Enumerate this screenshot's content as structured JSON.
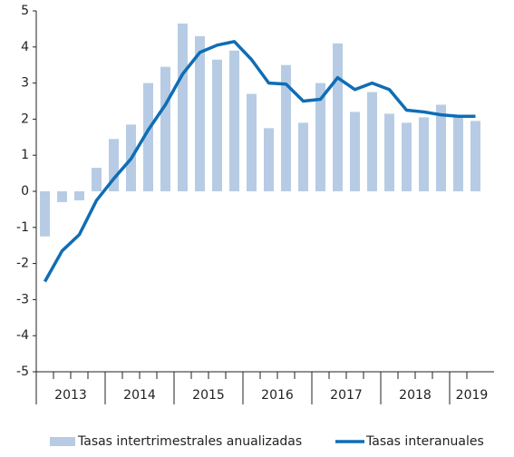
{
  "chart_data": {
    "type": "bar_line",
    "categories": [
      "2013",
      null,
      null,
      null,
      "2014",
      null,
      null,
      null,
      "2015",
      null,
      null,
      null,
      "2016",
      null,
      null,
      null,
      "2017",
      null,
      null,
      null,
      "2018",
      null,
      null,
      null,
      "2019",
      null
    ],
    "series": [
      {
        "name": "Tasas intertrimestrales anualizadas",
        "kind": "bar",
        "color": "#b7cce4",
        "values": [
          -1.25,
          -0.3,
          -0.25,
          0.65,
          1.45,
          1.85,
          3.0,
          3.45,
          4.65,
          4.3,
          3.65,
          3.9,
          2.7,
          1.75,
          3.5,
          1.9,
          3.0,
          4.1,
          2.2,
          2.75,
          2.15,
          1.9,
          2.05,
          2.4,
          2.1,
          1.95
        ]
      },
      {
        "name": "Tasas interanuales",
        "kind": "line",
        "color": "#0f6db5",
        "values": [
          -2.5,
          -1.65,
          -1.2,
          -0.25,
          0.35,
          0.9,
          1.7,
          2.4,
          3.25,
          3.85,
          4.05,
          4.15,
          3.65,
          3.0,
          2.97,
          2.5,
          2.55,
          3.15,
          2.82,
          3.0,
          2.82,
          2.25,
          2.2,
          2.12,
          2.08,
          2.08
        ]
      }
    ],
    "ylim": [
      -5,
      5
    ],
    "yticks": [
      -5,
      -4,
      -3,
      -2,
      -1,
      0,
      1,
      2,
      3,
      4,
      5
    ]
  }
}
